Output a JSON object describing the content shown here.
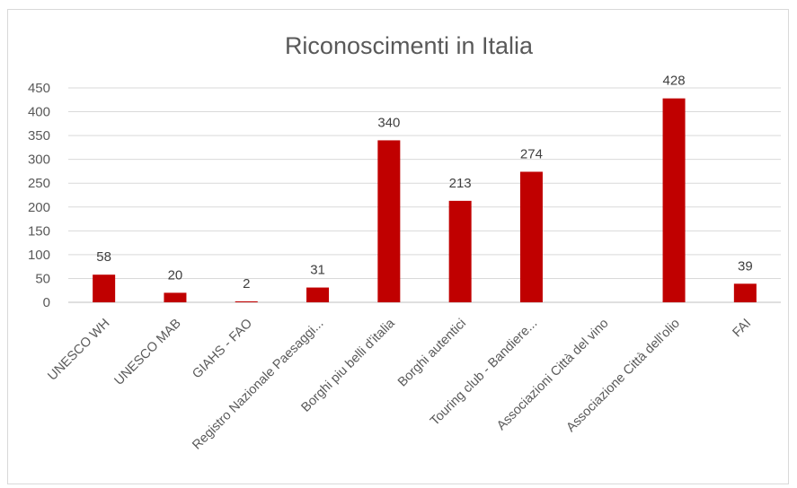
{
  "chart_data": {
    "type": "bar",
    "title": "Riconoscimenti in Italia",
    "xlabel": "",
    "ylabel": "",
    "ylim": [
      0,
      450
    ],
    "yticks": [
      0,
      50,
      100,
      150,
      200,
      250,
      300,
      350,
      400,
      450
    ],
    "grid": true,
    "legend": "none",
    "categories": [
      "UNESCO WH",
      "UNESCO MAB",
      "GIAHS - FAO",
      "Registro Nazionale Paesaggi...",
      "Borghi piu belli d'italia",
      "Borghi autentici",
      "Touring club - Bandiere...",
      "Associazioni Città del vino",
      "Associazione Città dell'olio",
      "FAI"
    ],
    "values": [
      58,
      20,
      2,
      31,
      340,
      213,
      274,
      null,
      428,
      39
    ],
    "data_labels": [
      "58",
      "20",
      "2",
      "31",
      "340",
      "213",
      "274",
      "",
      "428",
      "39"
    ],
    "bar_color": "#c00000"
  }
}
